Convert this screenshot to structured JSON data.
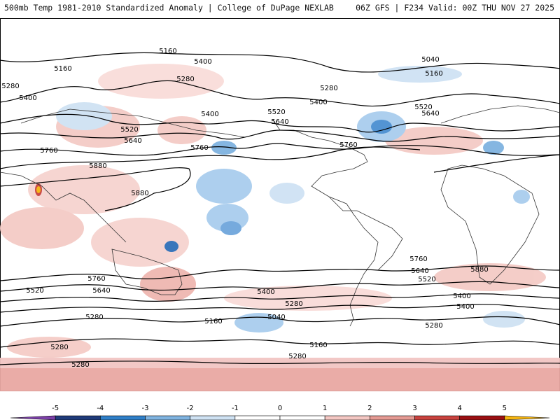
{
  "header": {
    "left": "500mb Temp 1981-2010 Standardized Anomaly | College of DuPage NEXLAB",
    "right": "06Z GFS | F234 Valid: 00Z THU NOV 27 2025"
  },
  "contour_labels": [
    "5160",
    "5400",
    "5280",
    "5160",
    "5040",
    "5160",
    "5280",
    "5400",
    "5520",
    "5640",
    "5760",
    "5880",
    "5400",
    "5520",
    "5640",
    "5760",
    "5280",
    "5400",
    "5520",
    "5640",
    "5760",
    "5880",
    "5520",
    "5640",
    "5760",
    "5280",
    "5400",
    "5160",
    "5040",
    "5280",
    "5160",
    "5280",
    "5280",
    "5280",
    "5400",
    "5520",
    "5640",
    "5760",
    "5880",
    "5280",
    "5400"
  ],
  "colorbar": {
    "ticks": [
      "-5",
      "-4",
      "-3",
      "-2",
      "-1",
      "0",
      "1",
      "2",
      "3",
      "4",
      "5"
    ],
    "colors": [
      "#7b3fa8",
      "#1f3b7a",
      "#2f7fc8",
      "#7fb3e0",
      "#cfe2f3",
      "#ffffff",
      "#ffffff",
      "#f4c7c3",
      "#e59a93",
      "#c9423e",
      "#9b0f12",
      "#f5b40f"
    ]
  }
}
